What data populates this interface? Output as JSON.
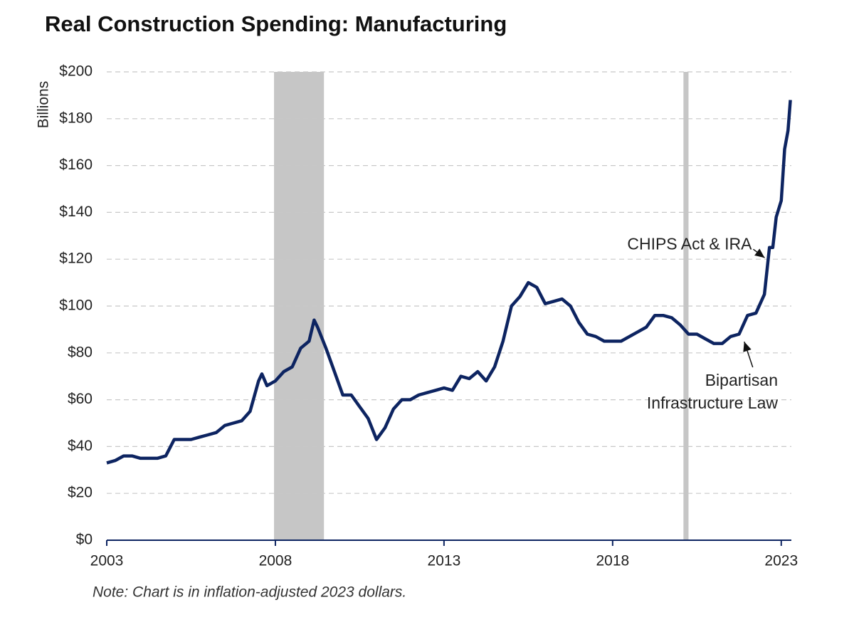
{
  "chart_data": {
    "type": "line",
    "title": "Real Construction Spending: Manufacturing",
    "y_label": "Billions",
    "note": "Note: Chart is in inflation-adjusted 2023 dollars.",
    "x": [
      2003.0,
      2003.25,
      2003.5,
      2003.75,
      2004.0,
      2004.25,
      2004.5,
      2004.75,
      2005.0,
      2005.25,
      2005.5,
      2005.75,
      2006.0,
      2006.25,
      2006.5,
      2006.75,
      2007.0,
      2007.25,
      2007.5,
      2007.6,
      2007.75,
      2008.0,
      2008.25,
      2008.5,
      2008.75,
      2009.0,
      2009.15,
      2009.25,
      2009.5,
      2009.75,
      2010.0,
      2010.25,
      2010.5,
      2010.75,
      2011.0,
      2011.25,
      2011.5,
      2011.75,
      2012.0,
      2012.25,
      2012.5,
      2012.75,
      2013.0,
      2013.25,
      2013.5,
      2013.75,
      2014.0,
      2014.25,
      2014.5,
      2014.75,
      2015.0,
      2015.25,
      2015.5,
      2015.75,
      2016.0,
      2016.25,
      2016.5,
      2016.75,
      2017.0,
      2017.25,
      2017.5,
      2017.75,
      2018.0,
      2018.25,
      2018.5,
      2018.75,
      2019.0,
      2019.25,
      2019.5,
      2019.75,
      2020.0,
      2020.25,
      2020.5,
      2020.75,
      2021.0,
      2021.25,
      2021.5,
      2021.75,
      2022.0,
      2022.25,
      2022.5,
      2022.65,
      2022.75,
      2022.85,
      2023.0,
      2023.1,
      2023.2,
      2023.27
    ],
    "series": [
      {
        "name": "Manufacturing",
        "color": "#0d2461",
        "values": [
          33,
          34,
          36,
          36,
          35,
          35,
          35,
          36,
          43,
          43,
          43,
          44,
          45,
          46,
          49,
          50,
          51,
          55,
          68,
          71,
          66,
          68,
          72,
          74,
          82,
          85,
          94,
          91,
          82,
          72,
          62,
          62,
          57,
          52,
          43,
          48,
          56,
          60,
          60,
          62,
          63,
          64,
          65,
          64,
          70,
          69,
          72,
          68,
          74,
          85,
          100,
          104,
          110,
          108,
          101,
          102,
          103,
          100,
          93,
          88,
          87,
          85,
          85,
          85,
          87,
          89,
          91,
          96,
          96,
          95,
          92,
          88,
          88,
          86,
          84,
          84,
          87,
          88,
          96,
          97,
          105,
          125,
          125,
          138,
          145,
          167,
          175,
          188
        ]
      }
    ],
    "shaded_periods": [
      [
        2007.96,
        2009.44
      ],
      [
        2020.1,
        2020.25
      ]
    ],
    "annotations": [
      {
        "text": "CHIPS Act & IRA",
        "x": 2022.55,
        "y": 120
      },
      {
        "text": [
          "Bipartisan",
          "Infrastructure Law"
        ],
        "x": 2021.86,
        "y": 86
      }
    ],
    "xlim": [
      2003,
      2023.3
    ],
    "xticks": [
      2003,
      2008,
      2013,
      2018,
      2023
    ],
    "ylim": [
      0,
      200
    ],
    "yticks": [
      {
        "value": 0,
        "label": "$0"
      },
      {
        "value": 20,
        "label": "$20"
      },
      {
        "value": 40,
        "label": "$40"
      },
      {
        "value": 60,
        "label": "$60"
      },
      {
        "value": 80,
        "label": "$80"
      },
      {
        "value": 100,
        "label": "$100"
      },
      {
        "value": 120,
        "label": "$120"
      },
      {
        "value": 140,
        "label": "$140"
      },
      {
        "value": 160,
        "label": "$160"
      },
      {
        "value": 180,
        "label": "$180"
      },
      {
        "value": 200,
        "label": "$200"
      }
    ],
    "grid": true
  }
}
